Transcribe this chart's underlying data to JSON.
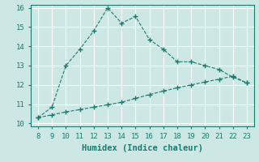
{
  "title": "",
  "xlabel": "Humidex (Indice chaleur)",
  "ylabel": "",
  "background_color": "#cde8e4",
  "grid_color": "#ffffff",
  "line_color": "#1a7a6e",
  "marker_color": "#1a7a6e",
  "xlim": [
    7.5,
    23.5
  ],
  "ylim": [
    9.85,
    16.15
  ],
  "xticks": [
    8,
    9,
    10,
    11,
    12,
    13,
    14,
    15,
    16,
    17,
    18,
    19,
    20,
    21,
    22,
    23
  ],
  "yticks": [
    10,
    11,
    12,
    13,
    14,
    15,
    16
  ],
  "series1_x": [
    8,
    9,
    10,
    11,
    12,
    13,
    14,
    15,
    16,
    17,
    18,
    19,
    20,
    21,
    22,
    23
  ],
  "series1_y": [
    10.3,
    10.85,
    13.0,
    13.85,
    14.8,
    16.0,
    15.2,
    15.55,
    14.35,
    13.85,
    13.2,
    13.2,
    13.0,
    12.8,
    12.4,
    12.1
  ],
  "series2_x": [
    8,
    9,
    10,
    11,
    12,
    13,
    14,
    15,
    16,
    17,
    18,
    19,
    20,
    21,
    22,
    23
  ],
  "series2_y": [
    10.3,
    10.45,
    10.6,
    10.72,
    10.85,
    10.97,
    11.1,
    11.3,
    11.5,
    11.68,
    11.85,
    12.0,
    12.15,
    12.3,
    12.45,
    12.1
  ],
  "font_family": "monospace",
  "tick_fontsize": 6.5,
  "xlabel_fontsize": 7.5
}
